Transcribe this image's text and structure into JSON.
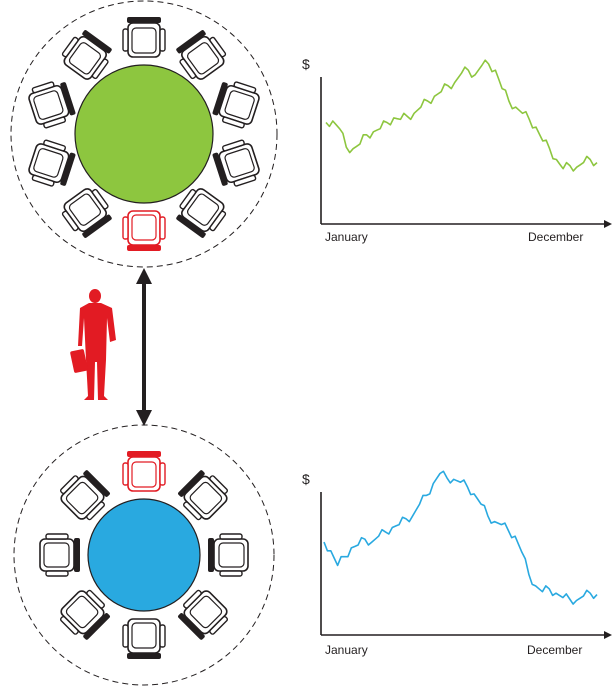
{
  "colors": {
    "top_table": "#8dc63f",
    "bottom_table": "#29a9e0",
    "highlight": "#e21b23",
    "ink": "#231f20",
    "top_series": "#8dc63f",
    "bottom_series": "#29a9e0"
  },
  "icons": {
    "person": "businessman-icon",
    "arrow": "double-headed-arrow-icon",
    "chair": "office-chair-icon"
  },
  "tables": [
    {
      "name": "top-table",
      "seats": 10,
      "highlighted_seat": "bottom"
    },
    {
      "name": "bottom-table",
      "seats": 8,
      "highlighted_seat": "top"
    }
  ],
  "chart_data": [
    {
      "type": "line",
      "title": "",
      "ylabel": "$",
      "xlabel": "",
      "x_tick_labels": [
        "January",
        "December"
      ],
      "series": [
        {
          "values": [
            62,
            63,
            58,
            46,
            45,
            48,
            54,
            56,
            58,
            62,
            65,
            64,
            66,
            68,
            72,
            76,
            79,
            82,
            86,
            88,
            94,
            96,
            93,
            99,
            100,
            96,
            84,
            76,
            72,
            68,
            64,
            59,
            50,
            45,
            38,
            32,
            34,
            33,
            36,
            38,
            36
          ]
        }
      ],
      "grid": false
    },
    {
      "type": "line",
      "title": "",
      "ylabel": "$",
      "xlabel": "",
      "x_tick_labels": [
        "January",
        "December"
      ],
      "series": [
        {
          "values": [
            52,
            46,
            36,
            42,
            48,
            50,
            54,
            52,
            56,
            59,
            62,
            64,
            68,
            70,
            78,
            84,
            92,
            99,
            96,
            95,
            93,
            90,
            85,
            78,
            70,
            66,
            64,
            60,
            56,
            45,
            30,
            22,
            18,
            20,
            17,
            14,
            13,
            12,
            15,
            17,
            16
          ]
        }
      ],
      "grid": false
    }
  ]
}
